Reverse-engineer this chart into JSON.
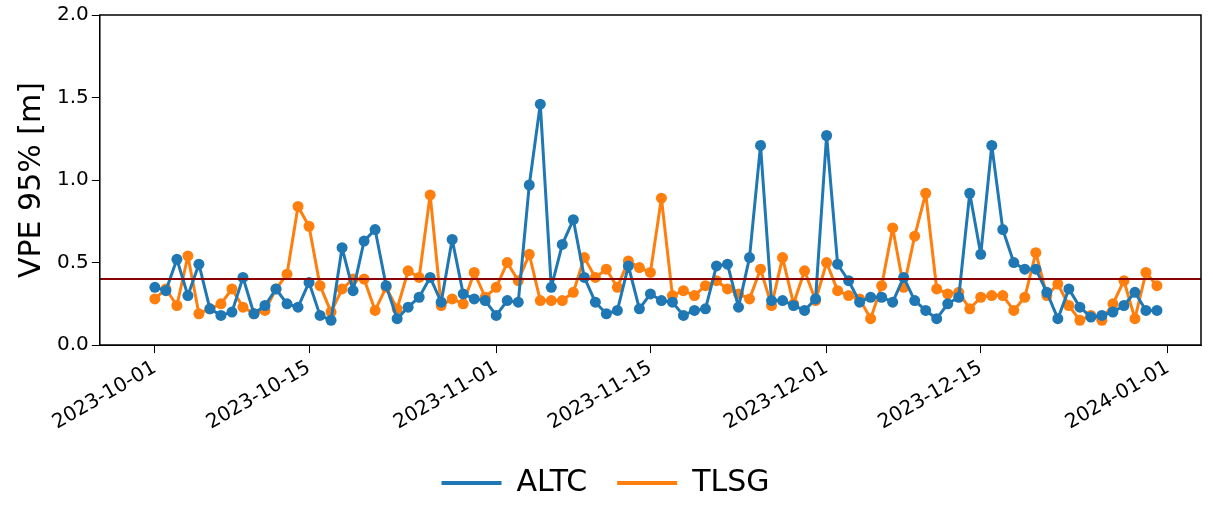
{
  "chart_data": {
    "type": "line",
    "ylabel": "VPE 95% [m]",
    "x": [
      "2023-10-01",
      "2023-10-02",
      "2023-10-03",
      "2023-10-04",
      "2023-10-05",
      "2023-10-06",
      "2023-10-07",
      "2023-10-08",
      "2023-10-09",
      "2023-10-10",
      "2023-10-11",
      "2023-10-12",
      "2023-10-13",
      "2023-10-14",
      "2023-10-15",
      "2023-10-16",
      "2023-10-17",
      "2023-10-18",
      "2023-10-19",
      "2023-10-20",
      "2023-10-21",
      "2023-10-22",
      "2023-10-23",
      "2023-10-24",
      "2023-10-25",
      "2023-10-26",
      "2023-10-27",
      "2023-10-28",
      "2023-10-29",
      "2023-10-30",
      "2023-10-31",
      "2023-11-01",
      "2023-11-02",
      "2023-11-03",
      "2023-11-04",
      "2023-11-05",
      "2023-11-06",
      "2023-11-07",
      "2023-11-08",
      "2023-11-09",
      "2023-11-10",
      "2023-11-11",
      "2023-11-12",
      "2023-11-13",
      "2023-11-14",
      "2023-11-15",
      "2023-11-16",
      "2023-11-17",
      "2023-11-18",
      "2023-11-19",
      "2023-11-20",
      "2023-11-21",
      "2023-11-22",
      "2023-11-23",
      "2023-11-24",
      "2023-11-25",
      "2023-11-26",
      "2023-11-27",
      "2023-11-28",
      "2023-11-29",
      "2023-11-30",
      "2023-12-01",
      "2023-12-02",
      "2023-12-03",
      "2023-12-04",
      "2023-12-05",
      "2023-12-06",
      "2023-12-07",
      "2023-12-08",
      "2023-12-09",
      "2023-12-10",
      "2023-12-11",
      "2023-12-12",
      "2023-12-13",
      "2023-12-14",
      "2023-12-15",
      "2023-12-16",
      "2023-12-17",
      "2023-12-18",
      "2023-12-19",
      "2023-12-20",
      "2023-12-21",
      "2023-12-22",
      "2023-12-23",
      "2023-12-24",
      "2023-12-25",
      "2023-12-26",
      "2023-12-27",
      "2023-12-28",
      "2023-12-29",
      "2023-12-30",
      "2023-12-31"
    ],
    "series": [
      {
        "name": "ALTC",
        "color": "#1f77b4",
        "values": [
          0.35,
          0.33,
          0.52,
          0.3,
          0.49,
          0.22,
          0.18,
          0.2,
          0.41,
          0.19,
          0.24,
          0.34,
          0.25,
          0.23,
          0.38,
          0.18,
          0.15,
          0.59,
          0.33,
          0.63,
          0.7,
          0.36,
          0.16,
          0.23,
          0.29,
          0.41,
          0.26,
          0.64,
          0.31,
          0.28,
          0.27,
          0.18,
          0.27,
          0.26,
          0.97,
          1.46,
          0.35,
          0.61,
          0.76,
          0.41,
          0.26,
          0.19,
          0.21,
          0.48,
          0.22,
          0.31,
          0.27,
          0.26,
          0.18,
          0.21,
          0.22,
          0.48,
          0.49,
          0.23,
          0.53,
          1.21,
          0.27,
          0.27,
          0.24,
          0.21,
          0.28,
          1.27,
          0.49,
          0.39,
          0.26,
          0.29,
          0.29,
          0.26,
          0.41,
          0.27,
          0.21,
          0.16,
          0.25,
          0.29,
          0.92,
          0.55,
          1.21,
          0.7,
          0.5,
          0.46,
          0.46,
          0.32,
          0.16,
          0.34,
          0.23,
          0.17,
          0.18,
          0.2,
          0.24,
          0.32,
          0.21,
          0.21
        ]
      },
      {
        "name": "TLSG",
        "color": "#ff7f0e",
        "values": [
          0.28,
          0.34,
          0.24,
          0.54,
          0.19,
          0.22,
          0.25,
          0.34,
          0.23,
          0.19,
          0.21,
          0.34,
          0.43,
          0.84,
          0.72,
          0.36,
          0.2,
          0.34,
          0.4,
          0.4,
          0.21,
          0.35,
          0.22,
          0.45,
          0.41,
          0.91,
          0.24,
          0.28,
          0.25,
          0.44,
          0.29,
          0.35,
          0.5,
          0.39,
          0.55,
          0.27,
          0.27,
          0.27,
          0.32,
          0.53,
          0.41,
          0.46,
          0.35,
          0.51,
          0.47,
          0.44,
          0.89,
          0.3,
          0.33,
          0.3,
          0.36,
          0.39,
          0.34,
          0.31,
          0.28,
          0.46,
          0.24,
          0.53,
          0.25,
          0.45,
          0.27,
          0.5,
          0.33,
          0.3,
          0.28,
          0.16,
          0.36,
          0.71,
          0.35,
          0.66,
          0.92,
          0.34,
          0.31,
          0.32,
          0.22,
          0.29,
          0.3,
          0.3,
          0.21,
          0.29,
          0.56,
          0.3,
          0.37,
          0.24,
          0.15,
          0.18,
          0.15,
          0.25,
          0.39,
          0.16,
          0.44,
          0.36
        ]
      }
    ],
    "xlim": [
      "2023-09-26",
      "2024-01-04"
    ],
    "xticks": [
      "2023-10-01",
      "2023-10-15",
      "2023-11-01",
      "2023-11-15",
      "2023-12-01",
      "2023-12-15",
      "2024-01-01"
    ],
    "ylim": [
      0,
      2
    ],
    "yticks": [
      {
        "value": 0,
        "label": "0.0"
      },
      {
        "value": 0.5,
        "label": "0.5"
      },
      {
        "value": 1,
        "label": "1.0"
      },
      {
        "value": 1.5,
        "label": "1.5"
      },
      {
        "value": 2,
        "label": "2.0"
      }
    ],
    "ref_lines": [
      {
        "axis": "y",
        "value": 0.4,
        "color": "#8b0000"
      }
    ],
    "grid": false,
    "legend": "bottom",
    "marker": "circle",
    "line_style": "solid"
  }
}
